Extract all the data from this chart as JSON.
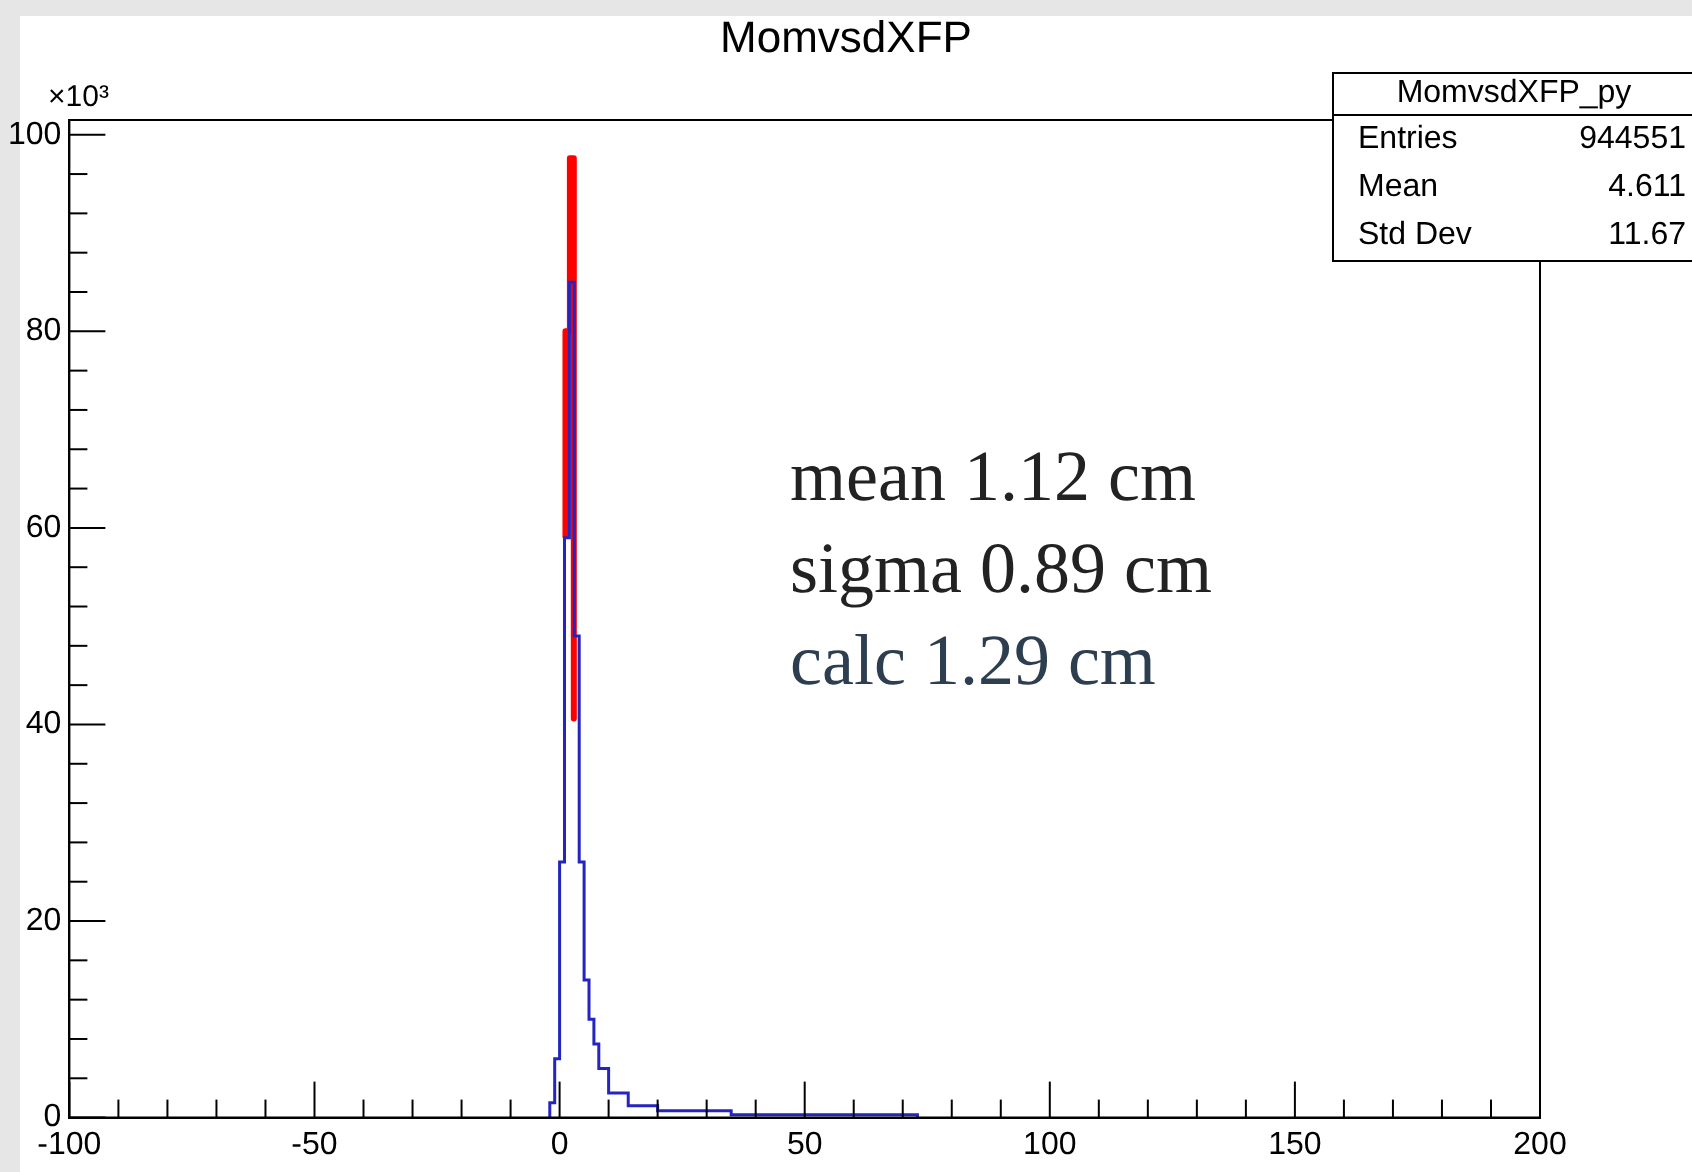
{
  "chart_data": {
    "title": "MomvsdXFP",
    "ylabel": "×10³",
    "color": "#2424c0",
    "bins": [
      -2,
      -1,
      0,
      1,
      2,
      3,
      4,
      5,
      6,
      7,
      8,
      10,
      14,
      20,
      35,
      73
    ],
    "values": [
      1.5,
      6,
      26,
      59,
      85,
      49,
      26,
      14,
      10,
      7.5,
      5,
      2.5,
      1.2,
      0.7,
      0.3
    ],
    "type": "histogram",
    "series": [
      {
        "type": "line",
        "color": "#ff0000",
        "x": [
          1.2,
          1.2,
          2.1,
          2.1,
          2.9,
          2.9
        ],
        "values": [
          59,
          80,
          80,
          97.6,
          97.6,
          40.6
        ]
      }
    ],
    "xlim": [
      -100,
      200
    ],
    "xticks": [
      -100,
      {
        "value": -90,
        "label": null
      },
      {
        "value": -80,
        "label": null
      },
      {
        "value": -70,
        "label": null
      },
      {
        "value": -60,
        "label": null
      },
      -50,
      {
        "value": -40,
        "label": null
      },
      {
        "value": -30,
        "label": null
      },
      {
        "value": -20,
        "label": null
      },
      {
        "value": -10,
        "label": null
      },
      0,
      {
        "value": 10,
        "label": null
      },
      {
        "value": 20,
        "label": null
      },
      {
        "value": 30,
        "label": null
      },
      {
        "value": 40,
        "label": null
      },
      50,
      {
        "value": 60,
        "label": null
      },
      {
        "value": 70,
        "label": null
      },
      {
        "value": 80,
        "label": null
      },
      {
        "value": 90,
        "label": null
      },
      100,
      {
        "value": 110,
        "label": null
      },
      {
        "value": 120,
        "label": null
      },
      {
        "value": 130,
        "label": null
      },
      {
        "value": 140,
        "label": null
      },
      150,
      {
        "value": 160,
        "label": null
      },
      {
        "value": 170,
        "label": null
      },
      {
        "value": 180,
        "label": null
      },
      {
        "value": 190,
        "label": null
      },
      200
    ],
    "ylim": [
      0,
      101.5
    ],
    "yticks": [
      0,
      {
        "value": 4,
        "label": null
      },
      {
        "value": 8,
        "label": null
      },
      {
        "value": 12,
        "label": null
      },
      {
        "value": 16,
        "label": null
      },
      20,
      {
        "value": 24,
        "label": null
      },
      {
        "value": 28,
        "label": null
      },
      {
        "value": 32,
        "label": null
      },
      {
        "value": 36,
        "label": null
      },
      40,
      {
        "value": 44,
        "label": null
      },
      {
        "value": 48,
        "label": null
      },
      {
        "value": 52,
        "label": null
      },
      {
        "value": 56,
        "label": null
      },
      60,
      {
        "value": 64,
        "label": null
      },
      {
        "value": 68,
        "label": null
      },
      {
        "value": 72,
        "label": null
      },
      {
        "value": 76,
        "label": null
      },
      80,
      {
        "value": 84,
        "label": null
      },
      {
        "value": 88,
        "label": null
      },
      {
        "value": 92,
        "label": null
      },
      {
        "value": 96,
        "label": null
      },
      100
    ],
    "annotations": [
      "MomvsdXFP_py",
      "Entries",
      "944551",
      "Mean",
      "4.611",
      "Std Dev",
      "11.67",
      "mean 1.12 cm",
      "sigma 0.89 cm",
      "calc 1.29 cm"
    ]
  }
}
